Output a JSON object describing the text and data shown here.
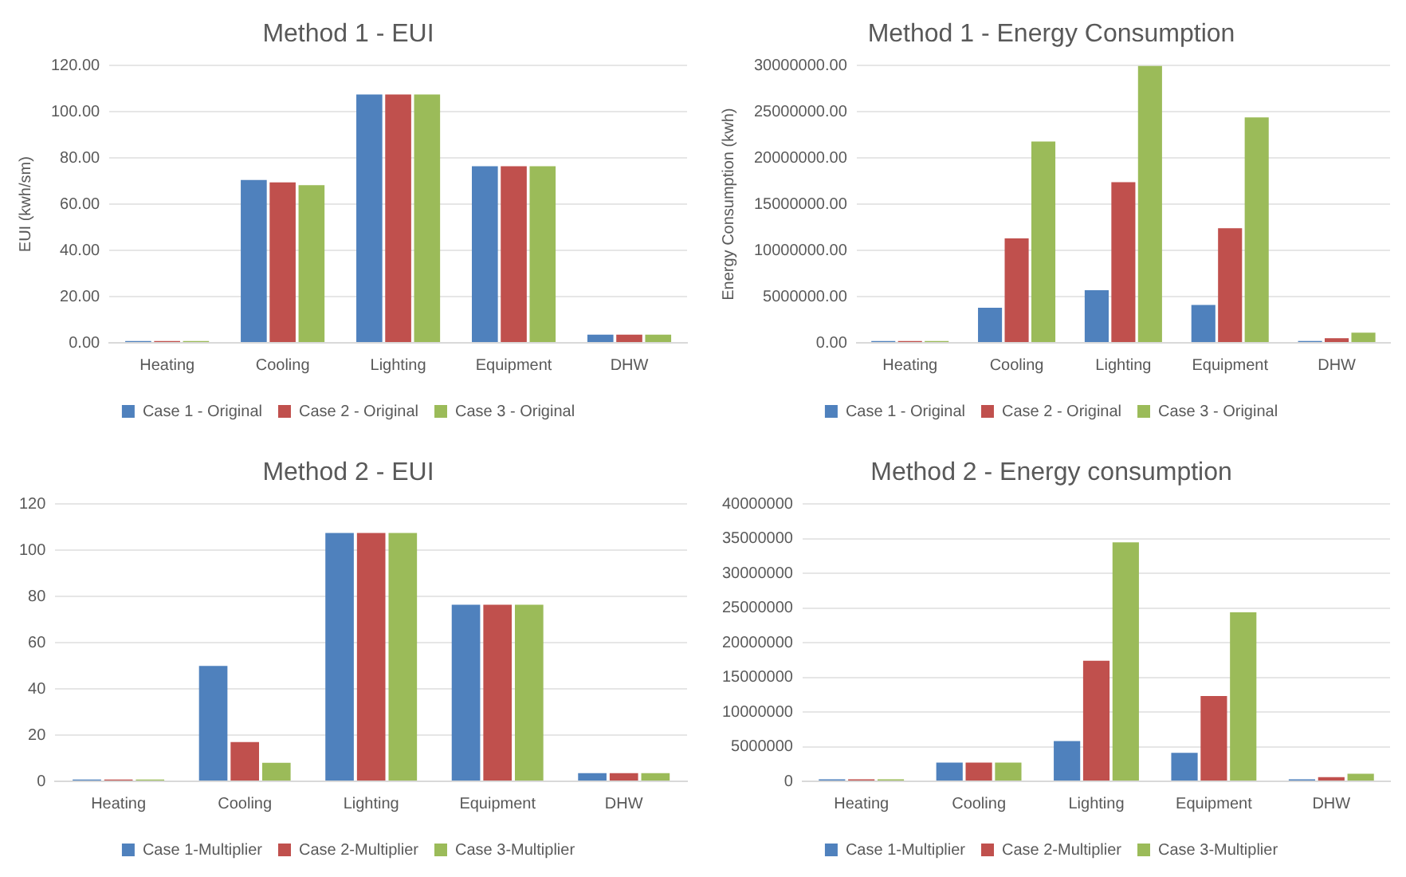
{
  "chart_data": [
    {
      "type": "bar",
      "title": "Method 1 - EUI",
      "ylabel": "EUI (kwh/sm)",
      "categories": [
        "Heating",
        "Cooling",
        "Lighting",
        "Equipment",
        "DHW"
      ],
      "series": [
        {
          "name": "Case 1 - Original",
          "color": "#4f81bd",
          "values": [
            0.8,
            70.5,
            107.5,
            76.5,
            3.5
          ]
        },
        {
          "name": "Case 2 - Original",
          "color": "#c0504d",
          "values": [
            0.8,
            69.5,
            107.5,
            76.5,
            3.5
          ]
        },
        {
          "name": "Case 3 - Original",
          "color": "#9bbb59",
          "values": [
            0.8,
            68.3,
            107.5,
            76.5,
            3.5
          ]
        }
      ],
      "ylim": [
        0,
        120
      ],
      "yticks": [
        {
          "value": 0,
          "label": "0.00"
        },
        {
          "value": 20,
          "label": "20.00"
        },
        {
          "value": 40,
          "label": "40.00"
        },
        {
          "value": 60,
          "label": "60.00"
        },
        {
          "value": 80,
          "label": "80.00"
        },
        {
          "value": 100,
          "label": "100.00"
        },
        {
          "value": 120,
          "label": "120.00"
        }
      ],
      "grid": "y",
      "legend": "bottom"
    },
    {
      "type": "bar",
      "title": "Method 1 - Energy Consumption",
      "ylabel": "Energy Consumption (kwh)",
      "categories": [
        "Heating",
        "Cooling",
        "Lighting",
        "Equipment",
        "DHW"
      ],
      "series": [
        {
          "name": "Case 1 - Original",
          "color": "#4f81bd",
          "values": [
            200000,
            3800000,
            5700000,
            4100000,
            200000
          ]
        },
        {
          "name": "Case 2 - Original",
          "color": "#c0504d",
          "values": [
            200000,
            11300000,
            17400000,
            12400000,
            500000
          ]
        },
        {
          "name": "Case 3 - Original",
          "color": "#9bbb59",
          "values": [
            200000,
            21800000,
            30000000,
            24400000,
            1100000
          ]
        }
      ],
      "ylim": [
        0,
        30000000
      ],
      "yticks": [
        {
          "value": 0,
          "label": "0.00"
        },
        {
          "value": 5000000,
          "label": "5000000.00"
        },
        {
          "value": 10000000,
          "label": "10000000.00"
        },
        {
          "value": 15000000,
          "label": "15000000.00"
        },
        {
          "value": 20000000,
          "label": "20000000.00"
        },
        {
          "value": 25000000,
          "label": "25000000.00"
        },
        {
          "value": 30000000,
          "label": "30000000.00"
        }
      ],
      "grid": "y",
      "legend": "bottom"
    },
    {
      "type": "bar",
      "title": "Method 2 - EUI",
      "categories": [
        "Heating",
        "Cooling",
        "Lighting",
        "Equipment",
        "DHW"
      ],
      "series": [
        {
          "name": "Case 1-Multiplier",
          "color": "#4f81bd",
          "values": [
            0.8,
            50,
            107.5,
            76.5,
            3.5
          ]
        },
        {
          "name": "Case 2-Multiplier",
          "color": "#c0504d",
          "values": [
            0.8,
            17,
            107.5,
            76.5,
            3.5
          ]
        },
        {
          "name": "Case 3-Multiplier",
          "color": "#9bbb59",
          "values": [
            0.8,
            8,
            107.5,
            76.5,
            3.5
          ]
        }
      ],
      "ylim": [
        0,
        120
      ],
      "yticks": [
        0,
        20,
        40,
        60,
        80,
        100,
        120
      ],
      "grid": "y",
      "legend": "bottom"
    },
    {
      "type": "bar",
      "title": "Method 2 - Energy consumption",
      "categories": [
        "Heating",
        "Cooling",
        "Lighting",
        "Equipment",
        "DHW"
      ],
      "series": [
        {
          "name": "Case 1-Multiplier",
          "color": "#4f81bd",
          "values": [
            300000,
            2700000,
            5800000,
            4100000,
            300000
          ]
        },
        {
          "name": "Case 2-Multiplier",
          "color": "#c0504d",
          "values": [
            300000,
            2700000,
            17400000,
            12300000,
            600000
          ]
        },
        {
          "name": "Case 3-Multiplier",
          "color": "#9bbb59",
          "values": [
            300000,
            2700000,
            34500000,
            24400000,
            1100000
          ]
        }
      ],
      "ylim": [
        0,
        40000000
      ],
      "yticks": [
        0,
        5000000,
        10000000,
        15000000,
        20000000,
        25000000,
        30000000,
        35000000,
        40000000
      ],
      "grid": "y",
      "legend": "bottom"
    }
  ]
}
